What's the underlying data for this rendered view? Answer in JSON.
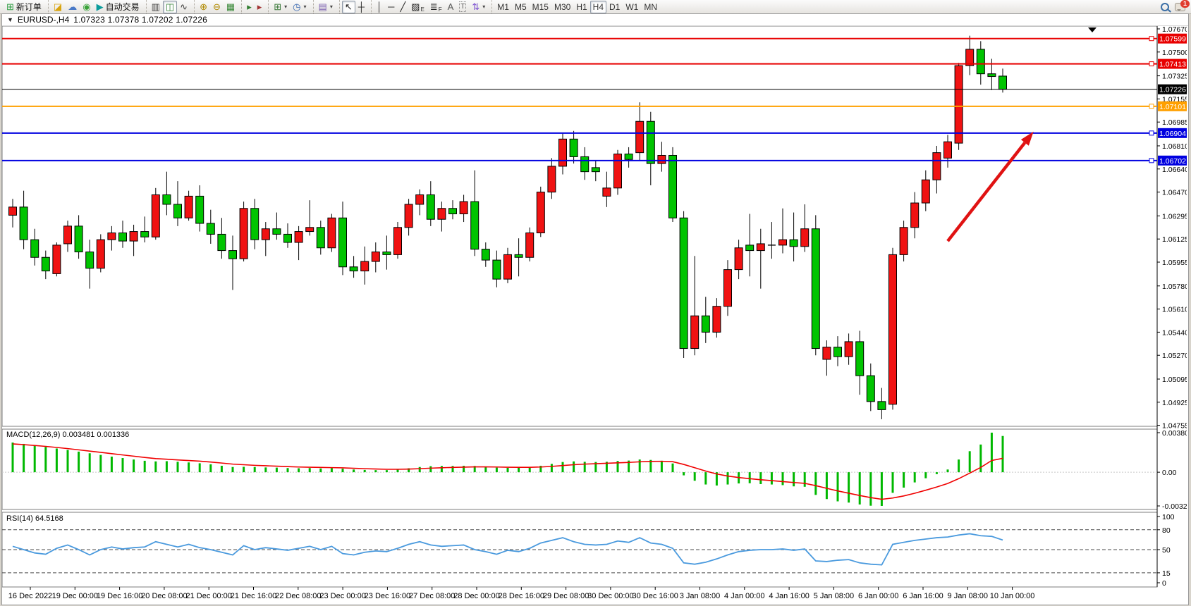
{
  "toolbar": {
    "groups": [
      [
        {
          "name": "new-order-button",
          "glyph": "⊞",
          "color": "#2f9e44",
          "label": "新订单"
        }
      ],
      [
        {
          "name": "history-center-button",
          "glyph": "◪",
          "color": "#d9a40f"
        },
        {
          "name": "community-button",
          "glyph": "☁",
          "color": "#4a7ac8"
        },
        {
          "name": "market-news-button",
          "glyph": "◉",
          "color": "#3aa33a"
        },
        {
          "name": "autotrading-button",
          "glyph": "▶",
          "color": "#0b9c9c",
          "label": "自动交易"
        }
      ],
      [
        {
          "name": "bar-chart-button",
          "glyph": "▥",
          "color": "#444444"
        },
        {
          "name": "candlestick-chart-button",
          "glyph": "◫",
          "color": "#2f7d2f",
          "active": true
        },
        {
          "name": "line-chart-button",
          "glyph": "∿",
          "color": "#444444"
        }
      ],
      [
        {
          "name": "zoom-in-button",
          "glyph": "⊕",
          "color": "#b08a00"
        },
        {
          "name": "zoom-out-button",
          "glyph": "⊖",
          "color": "#b08a00"
        },
        {
          "name": "tile-windows-button",
          "glyph": "▦",
          "color": "#3a8a3a"
        }
      ],
      [
        {
          "name": "auto-scroll-button",
          "glyph": "▸",
          "color": "#2f7d2f"
        },
        {
          "name": "chart-shift-button",
          "glyph": "▸",
          "color": "#a23333"
        }
      ],
      [
        {
          "name": "new-chart-button",
          "glyph": "⊞",
          "color": "#3a7a3a",
          "caret": true
        },
        {
          "name": "period-selector-button",
          "glyph": "◷",
          "color": "#3565b0",
          "caret": true
        }
      ],
      [
        {
          "name": "indicators-button",
          "glyph": "▤",
          "color": "#7a5fb0",
          "caret": true
        }
      ],
      [
        {
          "name": "cursor-button",
          "glyph": "↖",
          "color": "#222222",
          "active": true
        },
        {
          "name": "crosshair-button",
          "glyph": "┼",
          "color": "#222222"
        }
      ],
      [
        {
          "name": "vertical-line-button",
          "glyph": "│",
          "color": "#222222"
        },
        {
          "name": "horizontal-line-button",
          "glyph": "─",
          "color": "#222222"
        },
        {
          "name": "trendline-button",
          "glyph": "╱",
          "color": "#222222"
        },
        {
          "name": "equidistant-channel-button",
          "glyph": "▨",
          "color": "#222222",
          "sub": "E"
        },
        {
          "name": "fibonacci-button",
          "glyph": "≣",
          "color": "#222222",
          "sub": "F"
        },
        {
          "name": "text-button",
          "glyph": "A",
          "color": "#555555"
        },
        {
          "name": "text-label-button",
          "glyph": "T",
          "color": "#555555",
          "boxed": true
        },
        {
          "name": "arrows-button",
          "glyph": "⇅",
          "color": "#7a4fd0",
          "caret": true
        }
      ]
    ],
    "timeframes": [
      {
        "label": "M1"
      },
      {
        "label": "M5"
      },
      {
        "label": "M15"
      },
      {
        "label": "M30"
      },
      {
        "label": "H1"
      },
      {
        "label": "H4",
        "active": true
      },
      {
        "label": "D1"
      },
      {
        "label": "W1"
      },
      {
        "label": "MN"
      }
    ],
    "right": {
      "chat_badge": "1"
    }
  },
  "chart_header": {
    "collapse_icon": "▼",
    "title": "EURUSD-,H4",
    "ohlc": "1.07323 1.07378 1.07202 1.07226"
  },
  "chart_data": [
    {
      "type": "candlestick",
      "title": "EURUSD-,H4",
      "ohlc_display": {
        "open": "1.07323",
        "high": "1.07378",
        "low": "1.07202",
        "close": "1.07226"
      },
      "ylim": [
        1.0473,
        1.0772
      ],
      "y_ticks": [
        "1.07670",
        "1.07500",
        "1.07325",
        "1.07155",
        "1.06985",
        "1.06810",
        "1.06640",
        "1.06470",
        "1.06295",
        "1.06125",
        "1.05955",
        "1.05780",
        "1.05610",
        "1.05440",
        "1.05270",
        "1.05095",
        "1.04925",
        "1.04755"
      ],
      "x_labels": [
        "16 Dec 2022",
        "19 Dec 00:00",
        "19 Dec 16:00",
        "20 Dec 08:00",
        "21 Dec 00:00",
        "21 Dec 16:00",
        "22 Dec 08:00",
        "23 Dec 00:00",
        "23 Dec 16:00",
        "27 Dec 08:00",
        "28 Dec 00:00",
        "28 Dec 16:00",
        "29 Dec 08:00",
        "30 Dec 00:00",
        "30 Dec 16:00",
        "3 Jan 08:00",
        "4 Jan 00:00",
        "4 Jan 16:00",
        "5 Jan 08:00",
        "6 Jan 00:00",
        "6 Jan 16:00",
        "9 Jan 08:00",
        "10 Jan 00:00"
      ],
      "colors": {
        "bull": "#f01212",
        "bear": "#00c400",
        "outline": "#000000",
        "axis": "#000000"
      },
      "hlines": [
        {
          "price": 1.07599,
          "label": "1.07599",
          "color": "#e80000",
          "width": 2,
          "current": false
        },
        {
          "price": 1.07413,
          "label": "1.07413",
          "color": "#e80000",
          "width": 2,
          "current": false
        },
        {
          "price": 1.07226,
          "label": "1.07226",
          "color": "#000000",
          "width": 1,
          "current": true
        },
        {
          "price": 1.07101,
          "label": "1.07101",
          "color": "#ffa000",
          "width": 2,
          "current": false
        },
        {
          "price": 1.06904,
          "label": "1.06904",
          "color": "#0000e0",
          "width": 2,
          "current": false
        },
        {
          "price": 1.06702,
          "label": "1.06702",
          "color": "#0000e0",
          "width": 2,
          "current": false
        }
      ],
      "annotation_arrow": {
        "from_bar": 85,
        "from_price": 1.0611,
        "to_bar": 92.8,
        "to_price": 1.06915,
        "color": "#e01212"
      },
      "candles": [
        [
          1.063,
          1.0642,
          1.0621,
          1.0636
        ],
        [
          1.0636,
          1.0648,
          1.0605,
          1.0612
        ],
        [
          1.0612,
          1.062,
          1.0593,
          1.0599
        ],
        [
          1.0599,
          1.0604,
          1.0583,
          1.0589
        ],
        [
          1.0587,
          1.061,
          1.0585,
          1.0608
        ],
        [
          1.0609,
          1.0626,
          1.0603,
          1.0622
        ],
        [
          1.0622,
          1.063,
          1.0598,
          1.0603
        ],
        [
          1.0603,
          1.0612,
          1.0576,
          1.0591
        ],
        [
          1.0591,
          1.0616,
          1.0588,
          1.0612
        ],
        [
          1.0612,
          1.0622,
          1.0604,
          1.0617
        ],
        [
          1.0617,
          1.0626,
          1.0606,
          1.0611
        ],
        [
          1.0611,
          1.0623,
          1.06,
          1.0618
        ],
        [
          1.0618,
          1.0629,
          1.061,
          1.0614
        ],
        [
          1.0614,
          1.065,
          1.0612,
          1.0645
        ],
        [
          1.0645,
          1.0662,
          1.063,
          1.0638
        ],
        [
          1.0638,
          1.0655,
          1.0622,
          1.0628
        ],
        [
          1.0628,
          1.0648,
          1.0626,
          1.0644
        ],
        [
          1.0644,
          1.0652,
          1.0618,
          1.0624
        ],
        [
          1.0624,
          1.0634,
          1.0609,
          1.0616
        ],
        [
          1.0616,
          1.0628,
          1.0598,
          1.0604
        ],
        [
          1.0604,
          1.0615,
          1.0575,
          1.0598
        ],
        [
          1.0598,
          1.064,
          1.0596,
          1.0635
        ],
        [
          1.0635,
          1.0642,
          1.0605,
          1.0612
        ],
        [
          1.0612,
          1.0625,
          1.06,
          1.062
        ],
        [
          1.062,
          1.0632,
          1.0612,
          1.0616
        ],
        [
          1.0616,
          1.0624,
          1.0606,
          1.061
        ],
        [
          1.061,
          1.0622,
          1.0597,
          1.0618
        ],
        [
          1.0618,
          1.0641,
          1.0615,
          1.0621
        ],
        [
          1.0621,
          1.0626,
          1.0601,
          1.0606
        ],
        [
          1.0606,
          1.0631,
          1.0603,
          1.0628
        ],
        [
          1.0628,
          1.064,
          1.0586,
          1.0592
        ],
        [
          1.0592,
          1.06,
          1.0584,
          1.0589
        ],
        [
          1.0589,
          1.0607,
          1.0579,
          1.0596
        ],
        [
          1.0596,
          1.061,
          1.0588,
          1.0603
        ],
        [
          1.0603,
          1.0615,
          1.059,
          1.0601
        ],
        [
          1.0601,
          1.0625,
          1.0598,
          1.0621
        ],
        [
          1.0621,
          1.0642,
          1.0615,
          1.0638
        ],
        [
          1.0638,
          1.0649,
          1.063,
          1.0645
        ],
        [
          1.0645,
          1.0655,
          1.0622,
          1.0627
        ],
        [
          1.0627,
          1.064,
          1.0618,
          1.0635
        ],
        [
          1.0635,
          1.0641,
          1.0627,
          1.0631
        ],
        [
          1.0631,
          1.0645,
          1.0625,
          1.064
        ],
        [
          1.064,
          1.0663,
          1.06,
          1.0605
        ],
        [
          1.0605,
          1.061,
          1.0592,
          1.0597
        ],
        [
          1.0597,
          1.0604,
          1.0577,
          1.0583
        ],
        [
          1.0583,
          1.0606,
          1.058,
          1.0601
        ],
        [
          1.0601,
          1.0613,
          1.0585,
          1.0599
        ],
        [
          1.0599,
          1.0621,
          1.0596,
          1.0617
        ],
        [
          1.0617,
          1.0651,
          1.0614,
          1.0647
        ],
        [
          1.0647,
          1.0672,
          1.0642,
          1.0666
        ],
        [
          1.0666,
          1.069,
          1.066,
          1.0686
        ],
        [
          1.0686,
          1.0692,
          1.0668,
          1.0673
        ],
        [
          1.0673,
          1.068,
          1.0656,
          1.0662
        ],
        [
          1.0665,
          1.067,
          1.0655,
          1.0662
        ],
        [
          1.0644,
          1.0662,
          1.0636,
          1.065
        ],
        [
          1.065,
          1.0678,
          1.0645,
          1.0675
        ],
        [
          1.0675,
          1.068,
          1.0665,
          1.0671
        ],
        [
          1.0676,
          1.0713,
          1.067,
          1.0699
        ],
        [
          1.0699,
          1.0706,
          1.0652,
          1.0668
        ],
        [
          1.0668,
          1.0684,
          1.0662,
          1.0674
        ],
        [
          1.0674,
          1.068,
          1.0625,
          1.0628
        ],
        [
          1.0628,
          1.0633,
          1.0525,
          1.0532
        ],
        [
          1.0532,
          1.06,
          1.0527,
          1.0556
        ],
        [
          1.0556,
          1.057,
          1.0536,
          1.0544
        ],
        [
          1.0544,
          1.0569,
          1.054,
          1.0563
        ],
        [
          1.0563,
          1.0597,
          1.0556,
          1.059
        ],
        [
          1.059,
          1.0612,
          1.0583,
          1.0606
        ],
        [
          1.0608,
          1.0631,
          1.0585,
          1.0604
        ],
        [
          1.0604,
          1.062,
          1.0576,
          1.0609
        ],
        [
          1.0608,
          1.0625,
          1.0598,
          1.0608
        ],
        [
          1.0608,
          1.0635,
          1.0602,
          1.0612
        ],
        [
          1.0612,
          1.0632,
          1.0596,
          1.0607
        ],
        [
          1.0607,
          1.0638,
          1.0603,
          1.062
        ],
        [
          1.062,
          1.063,
          1.0527,
          1.0532
        ],
        [
          1.0524,
          1.0538,
          1.0512,
          1.0533
        ],
        [
          1.0533,
          1.0541,
          1.0519,
          1.0526
        ],
        [
          1.0526,
          1.0543,
          1.052,
          1.0537
        ],
        [
          1.0537,
          1.0545,
          1.0498,
          1.0512
        ],
        [
          1.0512,
          1.0521,
          1.0486,
          1.0493
        ],
        [
          1.0493,
          1.0503,
          1.048,
          1.0487
        ],
        [
          1.0491,
          1.0606,
          1.0487,
          1.0601
        ],
        [
          1.0601,
          1.0626,
          1.0596,
          1.0621
        ],
        [
          1.0621,
          1.0647,
          1.0613,
          1.0639
        ],
        [
          1.0639,
          1.0663,
          1.0633,
          1.0656
        ],
        [
          1.0656,
          1.0681,
          1.0646,
          1.0676
        ],
        [
          1.0672,
          1.0689,
          1.0665,
          1.0684
        ],
        [
          1.0683,
          1.0742,
          1.0678,
          1.074
        ],
        [
          1.074,
          1.0762,
          1.0733,
          1.0752
        ],
        [
          1.0752,
          1.0758,
          1.0726,
          1.0734
        ],
        [
          1.0734,
          1.0745,
          1.0722,
          1.0732
        ],
        [
          1.07323,
          1.07378,
          1.07202,
          1.07226
        ]
      ]
    },
    {
      "type": "bar",
      "name": "MACD(12,26,9)",
      "values_display": "0.003481 0.001336",
      "ylim": [
        -0.003241,
        0.003801
      ],
      "y_ticks": [
        {
          "label": "0.003801",
          "value": 0.003801
        },
        {
          "label": "0.00",
          "value": 0
        },
        {
          "label": "-0.003241",
          "value": -0.003241
        }
      ],
      "colors": {
        "histogram": "#00b800",
        "signal": "#f00000"
      },
      "histogram": [
        0.00285,
        0.00272,
        0.00258,
        0.00243,
        0.00228,
        0.00214,
        0.00198,
        0.00182,
        0.00166,
        0.0015,
        0.00136,
        0.00122,
        0.0011,
        0.00104,
        0.00106,
        0.001,
        0.00094,
        0.00086,
        0.00076,
        0.00062,
        0.0005,
        0.00052,
        0.0005,
        0.00046,
        0.00044,
        0.0004,
        0.00038,
        0.0004,
        0.00036,
        0.0004,
        0.00034,
        0.00026,
        0.00022,
        0.0002,
        0.0002,
        0.00026,
        0.00038,
        0.0005,
        0.00058,
        0.0006,
        0.0006,
        0.00062,
        0.0006,
        0.00052,
        0.00044,
        0.00042,
        0.00042,
        0.00048,
        0.00062,
        0.0008,
        0.00098,
        0.00104,
        0.001,
        0.00098,
        0.001,
        0.00108,
        0.00112,
        0.00122,
        0.00118,
        0.0011,
        0.00084,
        -0.0003,
        -0.00082,
        -0.00118,
        -0.00128,
        -0.00118,
        -0.00108,
        -0.00106,
        -0.00114,
        -0.00118,
        -0.00124,
        -0.00136,
        -0.0014,
        -0.00218,
        -0.00258,
        -0.0028,
        -0.00292,
        -0.0031,
        -0.00322,
        -0.00324,
        -0.00198,
        -0.00148,
        -0.00098,
        -0.00058,
        -0.00018,
        0.00026,
        0.00122,
        0.00202,
        0.00266,
        0.0038,
        0.003481
      ],
      "signal": [
        0.00272,
        0.00265,
        0.00257,
        0.00248,
        0.00238,
        0.00227,
        0.00215,
        0.00203,
        0.00191,
        0.00178,
        0.00166,
        0.00154,
        0.00142,
        0.00131,
        0.00125,
        0.00118,
        0.00112,
        0.00106,
        0.00098,
        0.00088,
        0.00078,
        0.00072,
        0.00066,
        0.00062,
        0.00058,
        0.00054,
        0.0005,
        0.00048,
        0.00046,
        0.00044,
        0.00042,
        0.00038,
        0.00034,
        0.00031,
        0.00028,
        0.00028,
        0.0003,
        0.00034,
        0.00039,
        0.00043,
        0.00046,
        0.00049,
        0.00051,
        0.00051,
        0.0005,
        0.00048,
        0.00047,
        0.00047,
        0.0005,
        0.00056,
        0.00064,
        0.00072,
        0.00078,
        0.00082,
        0.00086,
        0.0009,
        0.00094,
        0.001,
        0.00104,
        0.00105,
        0.00101,
        0.00075,
        0.00043,
        0.00011,
        -0.00017,
        -0.00037,
        -0.00051,
        -0.00062,
        -0.00072,
        -0.00081,
        -0.0009,
        -0.00099,
        -0.00107,
        -0.00129,
        -0.00155,
        -0.0018,
        -0.00202,
        -0.00224,
        -0.00244,
        -0.0026,
        -0.00248,
        -0.00228,
        -0.00202,
        -0.00173,
        -0.00142,
        -0.00108,
        -0.00062,
        -9e-05,
        0.00046,
        0.00113,
        0.001336
      ]
    },
    {
      "type": "line",
      "name": "RSI(14)",
      "value_display": "64.5168",
      "ylim": [
        0,
        100
      ],
      "y_ticks": [
        100,
        80,
        50,
        15,
        0
      ],
      "levels": [
        80,
        50,
        15
      ],
      "color": "#4a9ade",
      "values": [
        55,
        50,
        45,
        43,
        52,
        57,
        50,
        42,
        50,
        54,
        51,
        53,
        54,
        62,
        58,
        54,
        58,
        53,
        50,
        46,
        42,
        56,
        50,
        53,
        51,
        49,
        52,
        55,
        50,
        55,
        44,
        42,
        46,
        48,
        47,
        52,
        58,
        62,
        57,
        55,
        56,
        57,
        50,
        47,
        43,
        49,
        47,
        52,
        60,
        64,
        68,
        62,
        58,
        57,
        58,
        63,
        61,
        68,
        60,
        58,
        52,
        30,
        28,
        31,
        36,
        42,
        47,
        49,
        50,
        50,
        51,
        49,
        51,
        33,
        32,
        34,
        35,
        30,
        28,
        27,
        58,
        61,
        64,
        66,
        68,
        69,
        72,
        74,
        71,
        70,
        64.5
      ]
    }
  ]
}
